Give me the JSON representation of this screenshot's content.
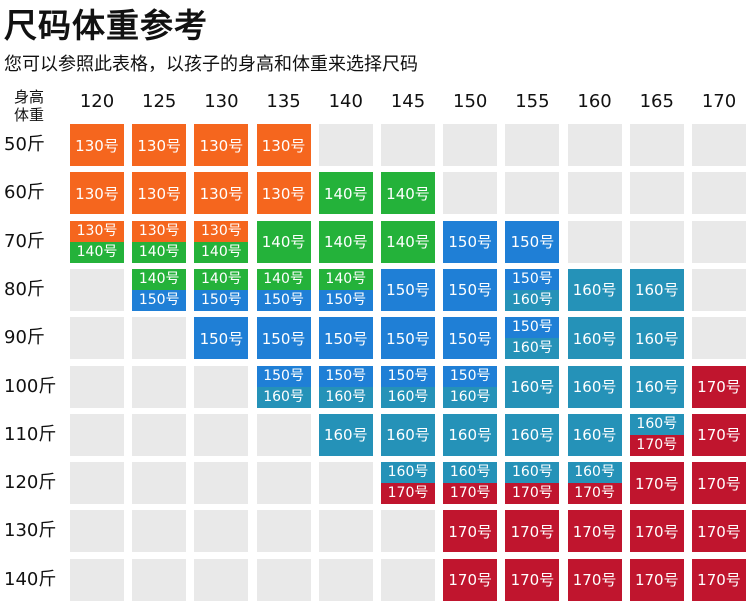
{
  "title": "尺码体重参考",
  "subtitle": "您可以参照此表格，以孩子的身高和体重来选择尺码",
  "corner": {
    "top": "身高",
    "bottom": "体重"
  },
  "heights": [
    "120",
    "125",
    "130",
    "135",
    "140",
    "145",
    "150",
    "155",
    "160",
    "165",
    "170"
  ],
  "weights": [
    "50斤",
    "60斤",
    "70斤",
    "80斤",
    "90斤",
    "100斤",
    "110斤",
    "120斤",
    "130斤",
    "140斤"
  ],
  "size_colors": {
    "130号": "#f5661e",
    "140号": "#24b23a",
    "150号": "#1f7fd6",
    "160号": "#2592b8",
    "170号": "#c0152e",
    "empty": "#e9e9e9"
  },
  "grid": [
    [
      [
        "130号"
      ],
      [
        "130号"
      ],
      [
        "130号"
      ],
      [
        "130号"
      ],
      [],
      [],
      [],
      [],
      [],
      [],
      []
    ],
    [
      [
        "130号"
      ],
      [
        "130号"
      ],
      [
        "130号"
      ],
      [
        "130号"
      ],
      [
        "140号"
      ],
      [
        "140号"
      ],
      [],
      [],
      [],
      [],
      []
    ],
    [
      [
        "130号",
        "140号"
      ],
      [
        "130号",
        "140号"
      ],
      [
        "130号",
        "140号"
      ],
      [
        "140号"
      ],
      [
        "140号"
      ],
      [
        "140号"
      ],
      [
        "150号"
      ],
      [
        "150号"
      ],
      [],
      [],
      []
    ],
    [
      [],
      [
        "140号",
        "150号"
      ],
      [
        "140号",
        "150号"
      ],
      [
        "140号",
        "150号"
      ],
      [
        "140号",
        "150号"
      ],
      [
        "150号"
      ],
      [
        "150号"
      ],
      [
        "150号",
        "160号"
      ],
      [
        "160号"
      ],
      [
        "160号"
      ],
      []
    ],
    [
      [],
      [],
      [
        "150号"
      ],
      [
        "150号"
      ],
      [
        "150号"
      ],
      [
        "150号"
      ],
      [
        "150号"
      ],
      [
        "150号",
        "160号"
      ],
      [
        "160号"
      ],
      [
        "160号"
      ],
      []
    ],
    [
      [],
      [],
      [],
      [
        "150号",
        "160号"
      ],
      [
        "150号",
        "160号"
      ],
      [
        "150号",
        "160号"
      ],
      [
        "150号",
        "160号"
      ],
      [
        "160号"
      ],
      [
        "160号"
      ],
      [
        "160号"
      ],
      [
        "170号"
      ]
    ],
    [
      [],
      [],
      [],
      [],
      [
        "160号"
      ],
      [
        "160号"
      ],
      [
        "160号"
      ],
      [
        "160号"
      ],
      [
        "160号"
      ],
      [
        "160号",
        "170号"
      ],
      [
        "170号"
      ]
    ],
    [
      [],
      [],
      [],
      [],
      [],
      [
        "160号",
        "170号"
      ],
      [
        "160号",
        "170号"
      ],
      [
        "160号",
        "170号"
      ],
      [
        "160号",
        "170号"
      ],
      [
        "170号"
      ],
      [
        "170号"
      ]
    ],
    [
      [],
      [],
      [],
      [],
      [],
      [],
      [
        "170号"
      ],
      [
        "170号"
      ],
      [
        "170号"
      ],
      [
        "170号"
      ],
      [
        "170号"
      ]
    ],
    [
      [],
      [],
      [],
      [],
      [],
      [],
      [
        "170号"
      ],
      [
        "170号"
      ],
      [
        "170号"
      ],
      [
        "170号"
      ],
      [
        "170号"
      ]
    ]
  ]
}
